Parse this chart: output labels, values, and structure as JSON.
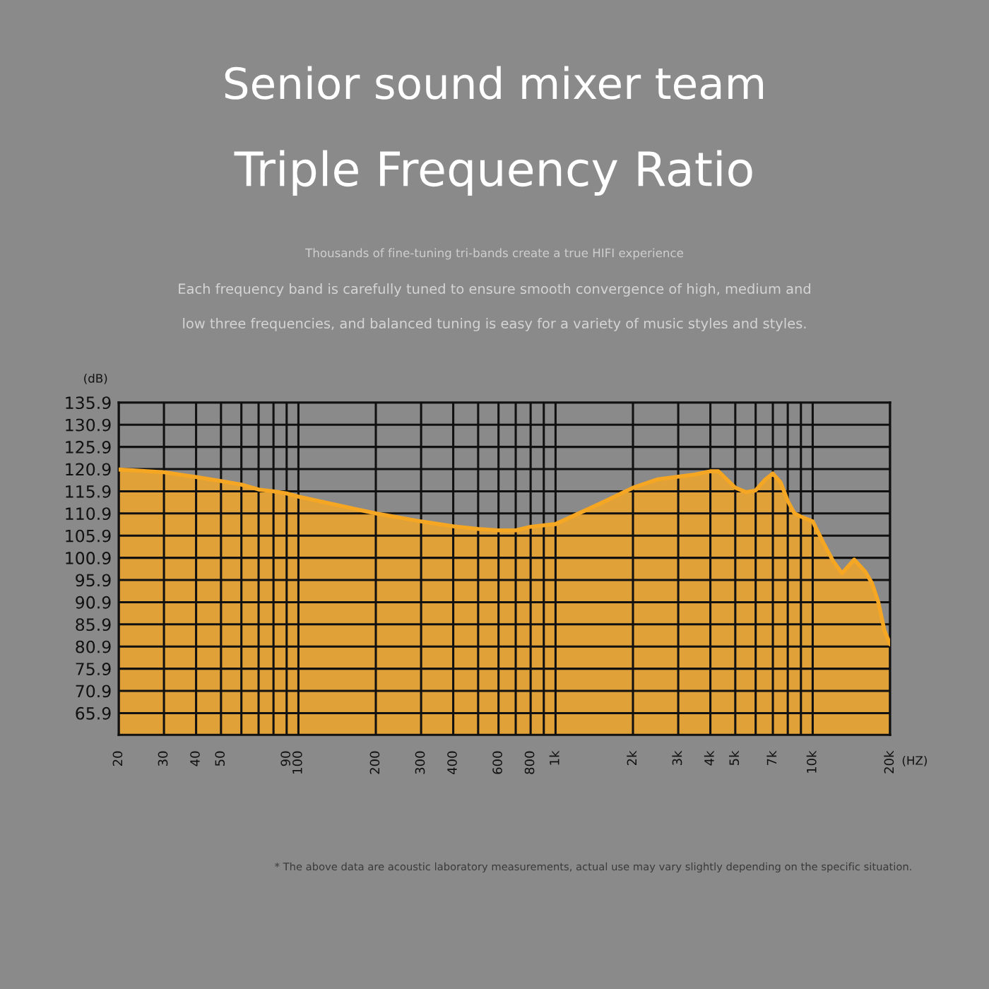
{
  "chart_data": {
    "type": "area",
    "title": "Senior sound mixer team",
    "subtitle": "Triple Frequency Ratio",
    "annotations": [
      "Thousands of fine-tuning tri-bands create a true HIFI experience",
      "Each frequency band is carefully tuned to ensure smooth convergence of high, medium and",
      "low three frequencies, and balanced tuning is easy for a variety of music styles and styles.",
      "* The above data are acoustic laboratory measurements, actual use may vary slightly depending on the specific situation."
    ],
    "xlabel": "(HZ)",
    "ylabel": "(dB)",
    "log": "x",
    "x": [
      20,
      30,
      40,
      50,
      60,
      70,
      80,
      90,
      100,
      200,
      300,
      400,
      500,
      600,
      700,
      800,
      1000,
      1500,
      2000,
      2500,
      3000,
      3500,
      4000,
      4300,
      5000,
      5500,
      6000,
      6500,
      7000,
      7500,
      8000,
      8500,
      9000,
      10000,
      11000,
      12000,
      13000,
      14500,
      16000,
      17000,
      18000,
      19000,
      20000
    ],
    "series": [
      {
        "color": "#f5a623",
        "values": [
          120.8,
          120.2,
          119.1,
          118.2,
          117.4,
          116.3,
          115.9,
          115.4,
          114.7,
          110.9,
          109.1,
          108.0,
          107.4,
          107.1,
          107.1,
          107.9,
          108.5,
          113.2,
          116.7,
          118.6,
          119.2,
          119.7,
          120.4,
          120.4,
          116.7,
          115.7,
          116.1,
          118.4,
          119.9,
          117.9,
          113.7,
          110.9,
          110.2,
          109.1,
          104.3,
          100.2,
          97.4,
          100.5,
          97.8,
          95.2,
          90.9,
          84.6,
          81.4
        ]
      }
    ],
    "xlim": [
      20,
      20000
    ],
    "ylim": [
      61,
      135.9
    ],
    "xticks": [
      20,
      30,
      40,
      50,
      {
        "value": 60,
        "label": null
      },
      {
        "value": 70,
        "label": null
      },
      {
        "value": 80,
        "label": null
      },
      90,
      100,
      200,
      300,
      400,
      {
        "value": 500,
        "label": null
      },
      600,
      {
        "value": 700,
        "label": null
      },
      800,
      {
        "value": 900,
        "label": null
      },
      {
        "value": 1000,
        "label": "1k"
      },
      {
        "value": 2000,
        "label": "2k"
      },
      {
        "value": 3000,
        "label": "3k"
      },
      {
        "value": 4000,
        "label": "4k"
      },
      {
        "value": 5000,
        "label": "5k"
      },
      {
        "value": 6000,
        "label": null
      },
      {
        "value": 7000,
        "label": "7k"
      },
      {
        "value": 8000,
        "label": null
      },
      {
        "value": 9000,
        "label": null
      },
      {
        "value": 10000,
        "label": "10k"
      },
      {
        "value": 20000,
        "label": "20k"
      }
    ],
    "yticks": [
      65.9,
      70.9,
      75.9,
      80.9,
      85.9,
      90.9,
      95.9,
      100.9,
      105.9,
      110.9,
      115.9,
      120.9,
      125.9,
      130.9,
      135.9
    ],
    "grid": true
  }
}
